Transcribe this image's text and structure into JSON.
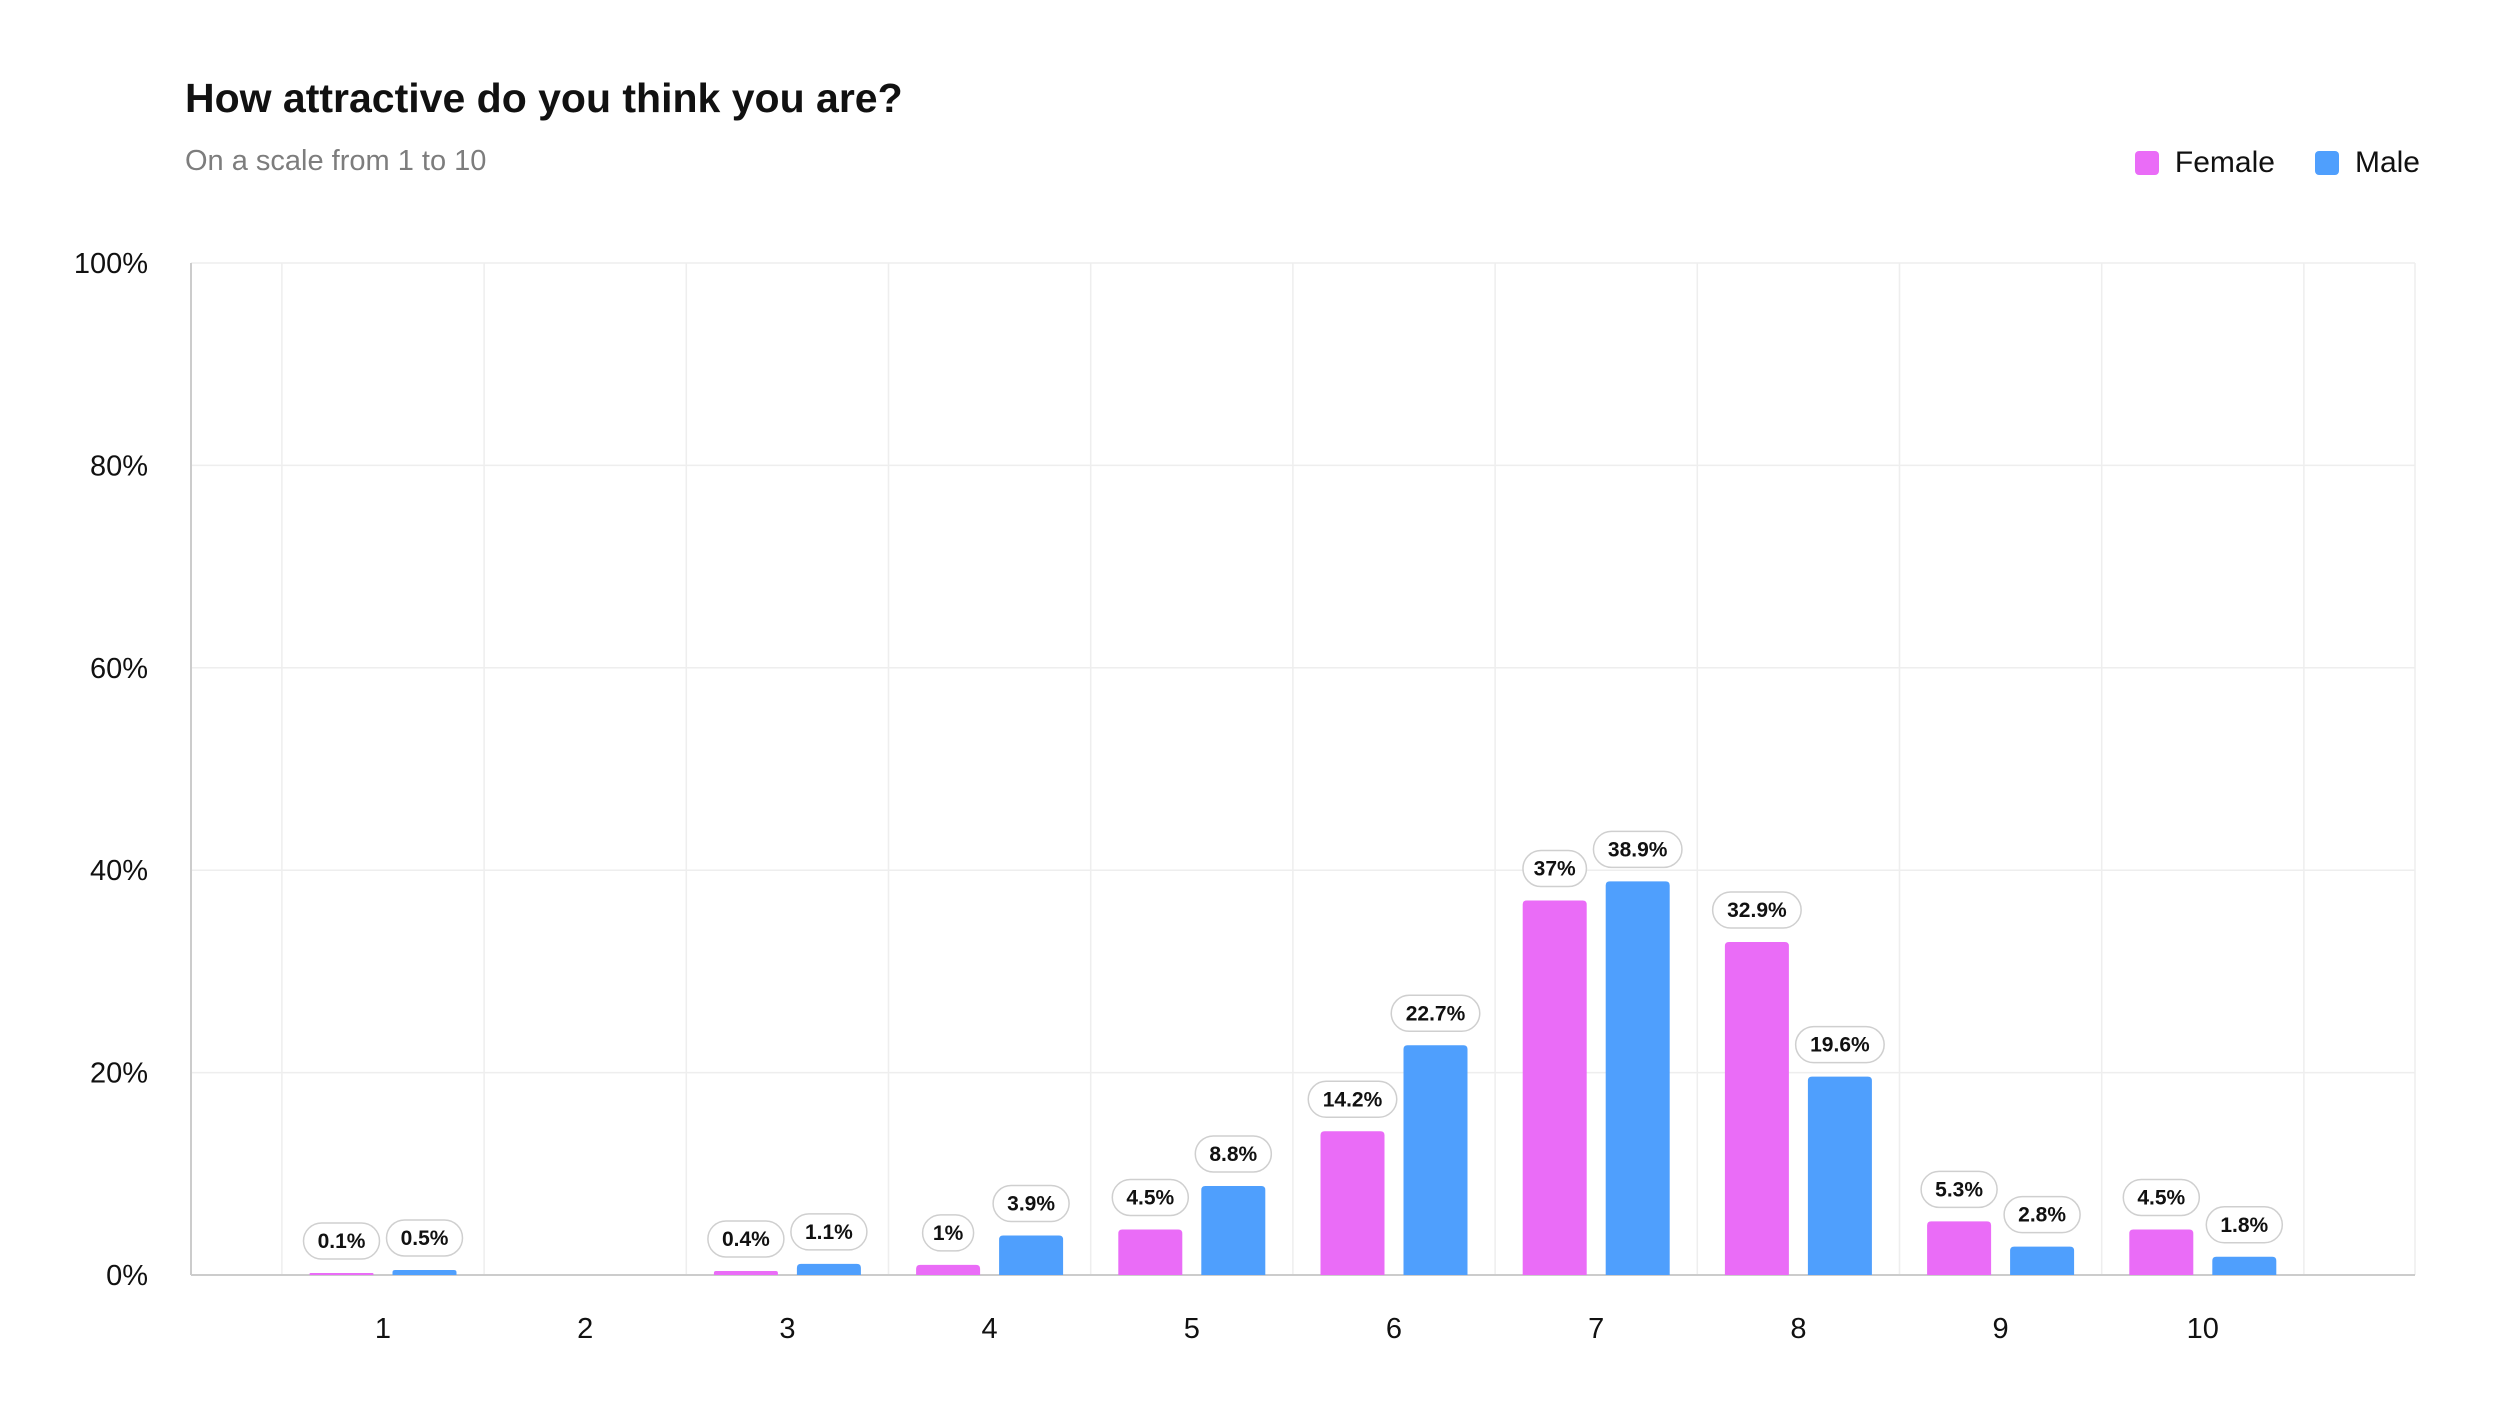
{
  "colors": {
    "female": "#ea6cf7",
    "male": "#4f9ffd",
    "grid": "#eeeeee",
    "axis": "#cccccc",
    "label_border": "#cfcfcf"
  },
  "chart_data": {
    "type": "bar",
    "title": "How attractive do you think you are?",
    "subtitle": "On a scale from 1 to 10",
    "xlabel": "",
    "ylabel": "",
    "ylim": [
      0,
      100
    ],
    "yticks": [
      0,
      20,
      40,
      60,
      80,
      100
    ],
    "ytick_labels": [
      "0%",
      "20%",
      "40%",
      "60%",
      "80%",
      "100%"
    ],
    "grid": true,
    "legend": "top-right",
    "categories": [
      "1",
      "2",
      "3",
      "4",
      "5",
      "6",
      "7",
      "8",
      "9",
      "10"
    ],
    "series": [
      {
        "name": "Female",
        "color": "#ea6cf7",
        "values": [
          0.1,
          null,
          0.4,
          1,
          4.5,
          14.2,
          37,
          32.9,
          5.3,
          4.5
        ],
        "labels": [
          "0.1%",
          "",
          "0.4%",
          "1%",
          "4.5%",
          "14.2%",
          "37%",
          "32.9%",
          "5.3%",
          "4.5%"
        ]
      },
      {
        "name": "Male",
        "color": "#4f9ffd",
        "values": [
          0.5,
          null,
          1.1,
          3.9,
          8.8,
          22.7,
          38.9,
          19.6,
          2.8,
          1.8
        ],
        "labels": [
          "0.5%",
          "",
          "1.1%",
          "3.9%",
          "8.8%",
          "22.7%",
          "38.9%",
          "19.6%",
          "2.8%",
          "1.8%"
        ]
      }
    ]
  }
}
